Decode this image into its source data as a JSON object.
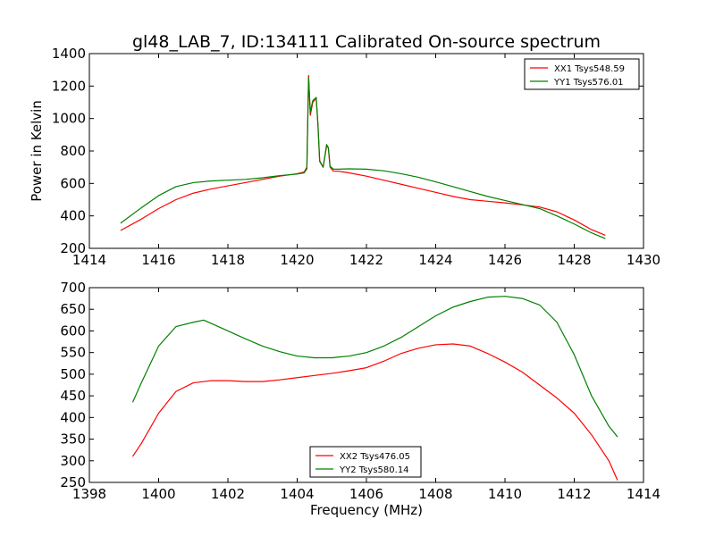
{
  "figure": {
    "title": "gl48_LAB_7, ID:134111 Calibrated On-source spectrum"
  },
  "chart_data": [
    {
      "type": "line",
      "title": "gl48_LAB_7, ID:134111 Calibrated On-source spectrum",
      "xlabel": "",
      "ylabel": "Power in Kelvin",
      "xlim": [
        1414,
        1430
      ],
      "ylim": [
        200,
        1400
      ],
      "xticks": [
        1414,
        1416,
        1418,
        1420,
        1422,
        1424,
        1426,
        1428,
        1430
      ],
      "yticks": [
        200,
        400,
        600,
        800,
        1000,
        1200,
        1400
      ],
      "legend": "top-right",
      "grid": false,
      "series": [
        {
          "name": "XX1 Tsys548.59",
          "color": "#ff0000",
          "x": [
            1414.9,
            1415.5,
            1416.0,
            1416.5,
            1417.0,
            1417.5,
            1418.0,
            1418.5,
            1419.0,
            1419.5,
            1420.0,
            1420.2,
            1420.28,
            1420.33,
            1420.38,
            1420.45,
            1420.55,
            1420.6,
            1420.65,
            1420.75,
            1420.85,
            1420.9,
            1420.95,
            1421.05,
            1421.2,
            1421.5,
            1422.0,
            1422.5,
            1423.0,
            1423.5,
            1424.0,
            1424.5,
            1425.0,
            1425.5,
            1426.0,
            1426.5,
            1427.0,
            1427.5,
            1428.0,
            1428.5,
            1428.9
          ],
          "y": [
            310,
            380,
            445,
            500,
            540,
            565,
            585,
            605,
            625,
            645,
            660,
            670,
            700,
            1265,
            1020,
            1100,
            1125,
            960,
            740,
            700,
            830,
            820,
            700,
            675,
            675,
            665,
            645,
            620,
            595,
            570,
            545,
            520,
            500,
            490,
            480,
            468,
            455,
            425,
            375,
            315,
            280
          ]
        },
        {
          "name": "YY1 Tsys576.01",
          "color": "#008000",
          "x": [
            1414.9,
            1415.5,
            1416.0,
            1416.5,
            1417.0,
            1417.5,
            1418.0,
            1418.5,
            1419.0,
            1419.5,
            1420.0,
            1420.2,
            1420.28,
            1420.33,
            1420.38,
            1420.45,
            1420.55,
            1420.6,
            1420.65,
            1420.75,
            1420.85,
            1420.9,
            1420.95,
            1421.05,
            1421.2,
            1421.5,
            1422.0,
            1422.5,
            1423.0,
            1423.5,
            1424.0,
            1424.5,
            1425.0,
            1425.5,
            1426.0,
            1426.5,
            1427.0,
            1427.5,
            1428.0,
            1428.5,
            1428.9
          ],
          "y": [
            355,
            450,
            525,
            580,
            605,
            615,
            620,
            625,
            635,
            648,
            658,
            665,
            690,
            1250,
            1040,
            1110,
            1130,
            965,
            735,
            700,
            840,
            820,
            705,
            688,
            688,
            690,
            688,
            678,
            660,
            638,
            610,
            580,
            550,
            520,
            495,
            470,
            445,
            400,
            350,
            295,
            260
          ]
        }
      ]
    },
    {
      "type": "line",
      "title": "",
      "xlabel": "Frequency (MHz)",
      "ylabel": "",
      "xlim": [
        1398,
        1414
      ],
      "ylim": [
        250,
        700
      ],
      "xticks": [
        1398,
        1400,
        1402,
        1404,
        1406,
        1408,
        1410,
        1412,
        1414
      ],
      "yticks": [
        250,
        300,
        350,
        400,
        450,
        500,
        550,
        600,
        650,
        700
      ],
      "legend": "bottom-center",
      "grid": false,
      "series": [
        {
          "name": "XX2 Tsys476.05",
          "color": "#ff0000",
          "x": [
            1399.25,
            1399.5,
            1400.0,
            1400.5,
            1401.0,
            1401.5,
            1402.0,
            1402.5,
            1403.0,
            1403.5,
            1404.0,
            1404.5,
            1405.0,
            1405.5,
            1406.0,
            1406.5,
            1407.0,
            1407.5,
            1408.0,
            1408.5,
            1409.0,
            1409.5,
            1410.0,
            1410.5,
            1411.0,
            1411.5,
            1412.0,
            1412.5,
            1413.0,
            1413.25
          ],
          "y": [
            310,
            340,
            410,
            460,
            480,
            485,
            485,
            483,
            483,
            487,
            492,
            497,
            502,
            508,
            515,
            530,
            548,
            560,
            568,
            570,
            565,
            548,
            528,
            505,
            475,
            445,
            410,
            360,
            300,
            255
          ]
        },
        {
          "name": "YY2 Tsys580.14",
          "color": "#008000",
          "x": [
            1399.25,
            1399.5,
            1400.0,
            1400.5,
            1401.0,
            1401.3,
            1401.5,
            1402.0,
            1402.5,
            1403.0,
            1403.5,
            1404.0,
            1404.5,
            1405.0,
            1405.5,
            1406.0,
            1406.5,
            1407.0,
            1407.5,
            1408.0,
            1408.5,
            1409.0,
            1409.5,
            1410.0,
            1410.5,
            1411.0,
            1411.5,
            1412.0,
            1412.5,
            1413.0,
            1413.25
          ],
          "y": [
            435,
            480,
            565,
            610,
            620,
            625,
            618,
            600,
            582,
            565,
            552,
            542,
            538,
            538,
            542,
            550,
            565,
            585,
            610,
            635,
            655,
            668,
            678,
            680,
            675,
            660,
            620,
            545,
            450,
            380,
            355
          ]
        }
      ]
    }
  ]
}
